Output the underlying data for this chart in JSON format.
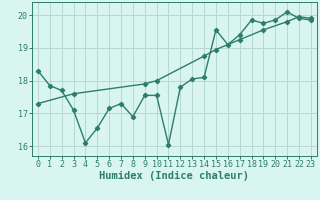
{
  "line1_x": [
    0,
    1,
    2,
    3,
    4,
    5,
    6,
    7,
    8,
    9,
    10,
    11,
    12,
    13,
    14,
    15,
    16,
    17,
    18,
    19,
    20,
    21,
    22,
    23
  ],
  "line1_y": [
    18.3,
    17.85,
    17.7,
    17.1,
    16.1,
    16.55,
    17.15,
    17.3,
    16.9,
    17.55,
    17.55,
    16.05,
    17.8,
    18.05,
    18.1,
    19.55,
    19.1,
    19.4,
    19.85,
    19.75,
    19.85,
    20.1,
    19.9,
    19.85
  ],
  "line2_x": [
    0,
    3,
    9,
    10,
    14,
    15,
    17,
    19,
    21,
    22,
    23
  ],
  "line2_y": [
    17.3,
    17.6,
    17.9,
    18.0,
    18.75,
    18.95,
    19.25,
    19.55,
    19.8,
    19.95,
    19.9
  ],
  "line_color": "#2d7d6e",
  "bg_color": "#d8f5f0",
  "grid_color": "#b8d8d4",
  "xlabel": "Humidex (Indice chaleur)",
  "ylim": [
    15.7,
    20.4
  ],
  "xlim": [
    -0.5,
    23.5
  ],
  "yticks": [
    16,
    17,
    18,
    19,
    20
  ],
  "xticks": [
    0,
    1,
    2,
    3,
    4,
    5,
    6,
    7,
    8,
    9,
    10,
    11,
    12,
    13,
    14,
    15,
    16,
    17,
    18,
    19,
    20,
    21,
    22,
    23
  ],
  "marker": "D",
  "marker_size": 2.2,
  "line_width": 1.0,
  "xlabel_fontsize": 7.5,
  "tick_fontsize": 6.0
}
